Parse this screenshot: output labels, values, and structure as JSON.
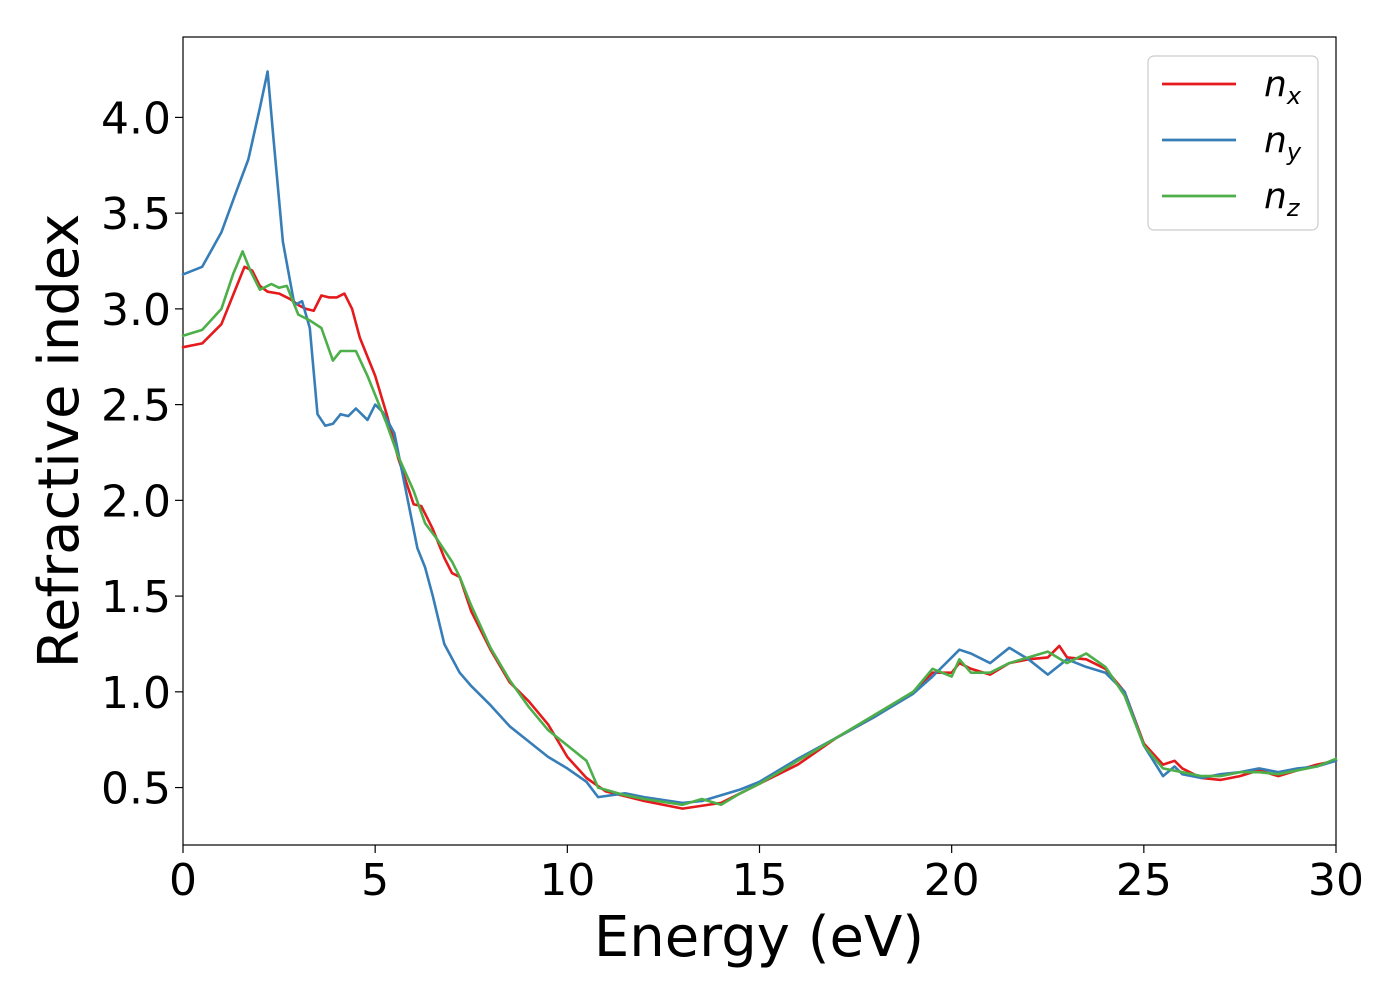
{
  "chart_data": {
    "type": "line",
    "title": "",
    "xlabel": "Energy (eV)",
    "ylabel": "Refractive index",
    "xlim": [
      0,
      30
    ],
    "ylim": [
      0.2,
      4.42
    ],
    "xticks": [
      0,
      5,
      10,
      15,
      20,
      25,
      30
    ],
    "xtick_labels": [
      "0",
      "5",
      "10",
      "15",
      "20",
      "25",
      "30"
    ],
    "yticks": [
      0.5,
      1.0,
      1.5,
      2.0,
      2.5,
      3.0,
      3.5,
      4.0
    ],
    "ytick_labels": [
      "0.5",
      "1.0",
      "1.5",
      "2.0",
      "2.5",
      "3.0",
      "3.5",
      "4.0"
    ],
    "grid": false,
    "legend_position": "top-right",
    "series": [
      {
        "name": "n_x",
        "label_main": "n",
        "label_sub": "x",
        "color": "#e41a1c",
        "points": [
          [
            0,
            2.8
          ],
          [
            0.5,
            2.82
          ],
          [
            1.0,
            2.92
          ],
          [
            1.4,
            3.12
          ],
          [
            1.6,
            3.22
          ],
          [
            1.8,
            3.2
          ],
          [
            2.0,
            3.12
          ],
          [
            2.2,
            3.09
          ],
          [
            2.5,
            3.08
          ],
          [
            2.8,
            3.05
          ],
          [
            3.0,
            3.02
          ],
          [
            3.2,
            3.0
          ],
          [
            3.4,
            2.99
          ],
          [
            3.6,
            3.07
          ],
          [
            3.8,
            3.06
          ],
          [
            4.0,
            3.06
          ],
          [
            4.2,
            3.08
          ],
          [
            4.4,
            3.0
          ],
          [
            4.6,
            2.85
          ],
          [
            5.0,
            2.65
          ],
          [
            5.3,
            2.45
          ],
          [
            5.6,
            2.22
          ],
          [
            6.0,
            1.98
          ],
          [
            6.2,
            1.97
          ],
          [
            6.5,
            1.85
          ],
          [
            6.8,
            1.7
          ],
          [
            7.0,
            1.62
          ],
          [
            7.2,
            1.6
          ],
          [
            7.5,
            1.42
          ],
          [
            8.0,
            1.22
          ],
          [
            8.5,
            1.05
          ],
          [
            9.0,
            0.95
          ],
          [
            9.5,
            0.83
          ],
          [
            10.0,
            0.66
          ],
          [
            10.5,
            0.55
          ],
          [
            11.0,
            0.48
          ],
          [
            12.0,
            0.43
          ],
          [
            13.0,
            0.39
          ],
          [
            14.0,
            0.42
          ],
          [
            15.0,
            0.52
          ],
          [
            16.0,
            0.62
          ],
          [
            17.0,
            0.76
          ],
          [
            18.0,
            0.87
          ],
          [
            19.0,
            1.0
          ],
          [
            19.5,
            1.1
          ],
          [
            20.0,
            1.1
          ],
          [
            20.2,
            1.15
          ],
          [
            20.5,
            1.12
          ],
          [
            21.0,
            1.09
          ],
          [
            21.5,
            1.15
          ],
          [
            22.0,
            1.17
          ],
          [
            22.5,
            1.18
          ],
          [
            22.8,
            1.24
          ],
          [
            23.0,
            1.18
          ],
          [
            23.5,
            1.17
          ],
          [
            24.0,
            1.12
          ],
          [
            24.5,
            1.0
          ],
          [
            25.0,
            0.73
          ],
          [
            25.5,
            0.62
          ],
          [
            25.8,
            0.64
          ],
          [
            26.0,
            0.6
          ],
          [
            26.5,
            0.55
          ],
          [
            27.0,
            0.54
          ],
          [
            27.5,
            0.56
          ],
          [
            28.0,
            0.59
          ],
          [
            28.5,
            0.56
          ],
          [
            29.0,
            0.59
          ],
          [
            29.5,
            0.62
          ],
          [
            30.0,
            0.64
          ]
        ]
      },
      {
        "name": "n_y",
        "label_main": "n",
        "label_sub": "y",
        "color": "#377eb8",
        "points": [
          [
            0,
            3.18
          ],
          [
            0.5,
            3.22
          ],
          [
            1.0,
            3.4
          ],
          [
            1.4,
            3.62
          ],
          [
            1.7,
            3.78
          ],
          [
            2.0,
            4.05
          ],
          [
            2.2,
            4.24
          ],
          [
            2.35,
            3.9
          ],
          [
            2.6,
            3.35
          ],
          [
            2.9,
            3.02
          ],
          [
            3.1,
            3.04
          ],
          [
            3.3,
            2.9
          ],
          [
            3.5,
            2.45
          ],
          [
            3.7,
            2.39
          ],
          [
            3.9,
            2.4
          ],
          [
            4.1,
            2.45
          ],
          [
            4.3,
            2.44
          ],
          [
            4.5,
            2.48
          ],
          [
            4.8,
            2.42
          ],
          [
            5.0,
            2.5
          ],
          [
            5.2,
            2.46
          ],
          [
            5.5,
            2.35
          ],
          [
            5.8,
            2.05
          ],
          [
            6.1,
            1.75
          ],
          [
            6.3,
            1.65
          ],
          [
            6.5,
            1.5
          ],
          [
            6.8,
            1.25
          ],
          [
            7.2,
            1.1
          ],
          [
            7.5,
            1.03
          ],
          [
            8.0,
            0.93
          ],
          [
            8.5,
            0.82
          ],
          [
            9.0,
            0.74
          ],
          [
            9.5,
            0.66
          ],
          [
            10.0,
            0.6
          ],
          [
            10.5,
            0.53
          ],
          [
            10.8,
            0.45
          ],
          [
            11.5,
            0.47
          ],
          [
            12.0,
            0.45
          ],
          [
            13.0,
            0.42
          ],
          [
            13.5,
            0.43
          ],
          [
            14.0,
            0.46
          ],
          [
            14.5,
            0.49
          ],
          [
            15.0,
            0.53
          ],
          [
            16.0,
            0.65
          ],
          [
            17.0,
            0.76
          ],
          [
            18.0,
            0.87
          ],
          [
            19.0,
            0.99
          ],
          [
            19.5,
            1.08
          ],
          [
            20.0,
            1.18
          ],
          [
            20.2,
            1.22
          ],
          [
            20.5,
            1.2
          ],
          [
            21.0,
            1.15
          ],
          [
            21.5,
            1.23
          ],
          [
            22.0,
            1.17
          ],
          [
            22.5,
            1.09
          ],
          [
            23.0,
            1.17
          ],
          [
            23.5,
            1.13
          ],
          [
            24.0,
            1.1
          ],
          [
            24.5,
            1.0
          ],
          [
            25.0,
            0.72
          ],
          [
            25.5,
            0.56
          ],
          [
            25.8,
            0.61
          ],
          [
            26.0,
            0.57
          ],
          [
            26.5,
            0.55
          ],
          [
            27.0,
            0.57
          ],
          [
            27.5,
            0.58
          ],
          [
            28.0,
            0.6
          ],
          [
            28.5,
            0.58
          ],
          [
            29.0,
            0.6
          ],
          [
            29.5,
            0.61
          ],
          [
            30.0,
            0.64
          ]
        ]
      },
      {
        "name": "n_z",
        "label_main": "n",
        "label_sub": "z",
        "color": "#4daf4a",
        "points": [
          [
            0,
            2.86
          ],
          [
            0.5,
            2.89
          ],
          [
            1.0,
            3.0
          ],
          [
            1.3,
            3.18
          ],
          [
            1.55,
            3.3
          ],
          [
            1.75,
            3.2
          ],
          [
            2.0,
            3.1
          ],
          [
            2.3,
            3.13
          ],
          [
            2.5,
            3.11
          ],
          [
            2.7,
            3.12
          ],
          [
            3.0,
            2.97
          ],
          [
            3.3,
            2.94
          ],
          [
            3.6,
            2.9
          ],
          [
            3.9,
            2.73
          ],
          [
            4.1,
            2.78
          ],
          [
            4.5,
            2.78
          ],
          [
            4.8,
            2.65
          ],
          [
            5.0,
            2.55
          ],
          [
            5.3,
            2.4
          ],
          [
            5.6,
            2.23
          ],
          [
            6.0,
            2.05
          ],
          [
            6.3,
            1.88
          ],
          [
            6.6,
            1.8
          ],
          [
            7.0,
            1.68
          ],
          [
            7.2,
            1.6
          ],
          [
            7.5,
            1.45
          ],
          [
            8.0,
            1.23
          ],
          [
            8.5,
            1.06
          ],
          [
            9.0,
            0.92
          ],
          [
            9.5,
            0.8
          ],
          [
            10.0,
            0.72
          ],
          [
            10.5,
            0.64
          ],
          [
            10.8,
            0.5
          ],
          [
            11.5,
            0.46
          ],
          [
            12.0,
            0.44
          ],
          [
            13.0,
            0.41
          ],
          [
            13.5,
            0.44
          ],
          [
            14.0,
            0.41
          ],
          [
            14.5,
            0.47
          ],
          [
            15.0,
            0.52
          ],
          [
            16.0,
            0.64
          ],
          [
            17.0,
            0.76
          ],
          [
            18.0,
            0.88
          ],
          [
            19.0,
            1.0
          ],
          [
            19.5,
            1.12
          ],
          [
            20.0,
            1.08
          ],
          [
            20.2,
            1.17
          ],
          [
            20.5,
            1.1
          ],
          [
            21.0,
            1.1
          ],
          [
            21.5,
            1.15
          ],
          [
            22.0,
            1.18
          ],
          [
            22.5,
            1.21
          ],
          [
            23.0,
            1.15
          ],
          [
            23.5,
            1.2
          ],
          [
            24.0,
            1.13
          ],
          [
            24.5,
            0.98
          ],
          [
            25.0,
            0.72
          ],
          [
            25.5,
            0.6
          ],
          [
            26.0,
            0.58
          ],
          [
            26.5,
            0.56
          ],
          [
            27.0,
            0.56
          ],
          [
            27.5,
            0.58
          ],
          [
            28.0,
            0.58
          ],
          [
            28.5,
            0.57
          ],
          [
            29.0,
            0.59
          ],
          [
            29.5,
            0.61
          ],
          [
            30.0,
            0.65
          ]
        ]
      }
    ]
  }
}
